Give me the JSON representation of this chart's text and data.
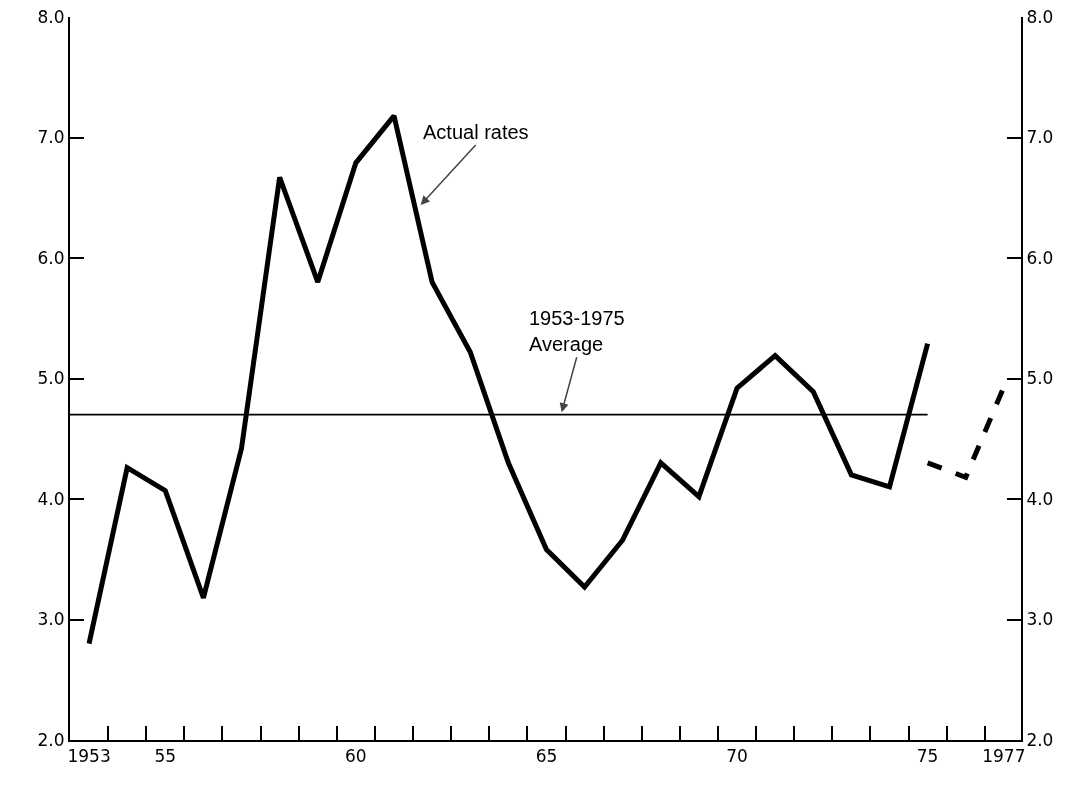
{
  "chart_data": {
    "type": "line",
    "series": [
      {
        "color": "#000000",
        "line_style": "solid",
        "x": [
          1953,
          1954,
          1955,
          1956,
          1957,
          1958,
          1959,
          1960,
          1961,
          1962,
          1963,
          1964,
          1965,
          1966,
          1967,
          1968,
          1969,
          1970,
          1971,
          1972,
          1973,
          1974,
          1975
        ],
        "values": [
          2.8,
          4.26,
          4.07,
          3.18,
          4.42,
          6.67,
          5.8,
          6.79,
          7.18,
          5.8,
          5.22,
          4.3,
          3.58,
          3.27,
          3.66,
          4.3,
          4.02,
          4.92,
          5.19,
          4.89,
          4.2,
          4.1,
          5.29
        ]
      },
      {
        "color": "#000000",
        "line_style": "dashed",
        "x": [
          1975,
          1976,
          1977
        ],
        "values": [
          4.3,
          4.18,
          4.93
        ]
      }
    ],
    "xlim": [
      1952.5,
      1977.45
    ],
    "xticks": [
      {
        "value": 1953,
        "label": "1953"
      },
      {
        "value": 1955,
        "label": "55"
      },
      {
        "value": 1960,
        "label": "60"
      },
      {
        "value": 1965,
        "label": "65"
      },
      {
        "value": 1970,
        "label": "70"
      },
      {
        "value": 1975,
        "label": "75"
      },
      {
        "value": 1977,
        "label": "1977"
      },
      {
        "value": 1953.5,
        "label": null
      },
      {
        "value": 1954.5,
        "label": null
      },
      {
        "value": 1955.5,
        "label": null
      },
      {
        "value": 1956.5,
        "label": null
      },
      {
        "value": 1957.5,
        "label": null
      },
      {
        "value": 1958.5,
        "label": null
      },
      {
        "value": 1959.5,
        "label": null
      },
      {
        "value": 1960.5,
        "label": null
      },
      {
        "value": 1961.5,
        "label": null
      },
      {
        "value": 1962.5,
        "label": null
      },
      {
        "value": 1963.5,
        "label": null
      },
      {
        "value": 1964.5,
        "label": null
      },
      {
        "value": 1965.5,
        "label": null
      },
      {
        "value": 1966.5,
        "label": null
      },
      {
        "value": 1967.5,
        "label": null
      },
      {
        "value": 1968.5,
        "label": null
      },
      {
        "value": 1969.5,
        "label": null
      },
      {
        "value": 1970.5,
        "label": null
      },
      {
        "value": 1971.5,
        "label": null
      },
      {
        "value": 1972.5,
        "label": null
      },
      {
        "value": 1973.5,
        "label": null
      },
      {
        "value": 1974.5,
        "label": null
      },
      {
        "value": 1975.5,
        "label": null
      },
      {
        "value": 1976.5,
        "label": null
      }
    ],
    "ylim": [
      2,
      8
    ],
    "yticks": [
      {
        "value": 2,
        "label": "2.0"
      },
      {
        "value": 3,
        "label": "3.0"
      },
      {
        "value": 4,
        "label": "4.0"
      },
      {
        "value": 5,
        "label": "5.0"
      },
      {
        "value": 6,
        "label": "6.0"
      },
      {
        "value": 7,
        "label": "7.0"
      },
      {
        "value": 8,
        "label": "8.0"
      }
    ],
    "y2lim": [
      2,
      8
    ],
    "y2ticks": [
      {
        "value": 2,
        "label": "2.0"
      },
      {
        "value": 3,
        "label": "3.0"
      },
      {
        "value": 4,
        "label": "4.0"
      },
      {
        "value": 5,
        "label": "5.0"
      },
      {
        "value": 6,
        "label": "6.0"
      },
      {
        "value": 7,
        "label": "7.0"
      },
      {
        "value": 8,
        "label": "8.0"
      }
    ],
    "ref_lines": [
      {
        "axis": "y",
        "value": 4.7,
        "color": "#000000",
        "line_style": "solid"
      }
    ],
    "annotations": [
      {
        "text": "Actual rates",
        "x": 1961.7,
        "y": 6.44
      },
      {
        "text": "1953-1975\nAverage",
        "x": 1965.4,
        "y": 4.72
      }
    ],
    "marker": "none"
  }
}
